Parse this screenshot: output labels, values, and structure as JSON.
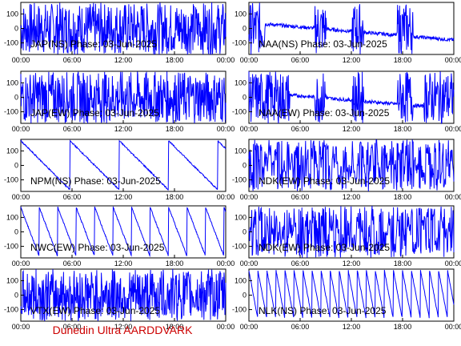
{
  "footer": "Dunedin Ultra AARDDVARK",
  "colors": {
    "trace": "#0000ff",
    "axes": "#000000",
    "footer": "#cc0000"
  },
  "chart_data": [
    {
      "type": "line",
      "title": "JAP(NS) Phase: 03-Jun-2025",
      "x_ticks": [
        "00:00",
        "06:00",
        "12:00",
        "18:00",
        "00:00"
      ],
      "y_ticks": [
        "100",
        "0",
        "-100"
      ],
      "ylim": [
        -180,
        180
      ],
      "grid": false,
      "pattern": "dense"
    },
    {
      "type": "line",
      "title": "NAA(NS) Phase: 03-Jun-2025",
      "x_ticks": [
        "00:00",
        "06:00",
        "12:00",
        "18:00",
        "00:00"
      ],
      "y_ticks": [
        "100",
        "0",
        "-100"
      ],
      "ylim": [
        -180,
        180
      ],
      "grid": false,
      "pattern": "gappy"
    },
    {
      "type": "line",
      "title": "JAP(EW) Phase: 03-Jun-2025",
      "x_ticks": [
        "00:00",
        "06:00",
        "12:00",
        "18:00",
        "00:00"
      ],
      "y_ticks": [
        "100",
        "0",
        "-100"
      ],
      "ylim": [
        -180,
        180
      ],
      "grid": false,
      "pattern": "dense"
    },
    {
      "type": "line",
      "title": "NAA(EW) Phase: 03-Jun-2025",
      "x_ticks": [
        "00:00",
        "06:00",
        "12:00",
        "18:00",
        "00:00"
      ],
      "y_ticks": [
        "100",
        "0",
        "-100"
      ],
      "ylim": [
        -180,
        180
      ],
      "grid": false,
      "pattern": "gappy2"
    },
    {
      "type": "line",
      "title": "NPM(NS) Phase: 03-Jun-2025",
      "x_ticks": [
        "00:00",
        "06:00",
        "12:00",
        "18:00",
        "00:00"
      ],
      "y_ticks": [
        "100",
        "0",
        "-100"
      ],
      "ylim": [
        -180,
        180
      ],
      "grid": false,
      "pattern": "sawslow"
    },
    {
      "type": "line",
      "title": "NDK(EW) Phase: 03-Jun-2025",
      "x_ticks": [
        "00:00",
        "06:00",
        "12:00",
        "18:00",
        "00:00"
      ],
      "y_ticks": [
        "100",
        "0",
        "-100"
      ],
      "ylim": [
        -180,
        180
      ],
      "grid": false,
      "pattern": "noisy"
    },
    {
      "type": "line",
      "title": "NWC(EW) Phase: 03-Jun-2025",
      "x_ticks": [
        "00:00",
        "06:00",
        "12:00",
        "18:00",
        "00:00"
      ],
      "y_ticks": [
        "100",
        "0",
        "-100"
      ],
      "ylim": [
        -180,
        180
      ],
      "grid": false,
      "pattern": "sawmed"
    },
    {
      "type": "line",
      "title": "NDK(EW) Phase: 03-Jun-2025",
      "x_ticks": [
        "00:00",
        "06:00",
        "12:00",
        "18:00",
        "00:00"
      ],
      "y_ticks": [
        "100",
        "0",
        "-100"
      ],
      "ylim": [
        -180,
        180
      ],
      "grid": false,
      "pattern": "noisy"
    },
    {
      "type": "line",
      "title": "VTX(EW) Phase: 03-Jun-2025",
      "x_ticks": [
        "00:00",
        "06:00",
        "12:00",
        "18:00",
        "00:00"
      ],
      "y_ticks": [
        "100",
        "0",
        "-100"
      ],
      "ylim": [
        -180,
        180
      ],
      "grid": false,
      "pattern": "dense"
    },
    {
      "type": "line",
      "title": "NLK(NS) Phase: 03-Jun-2025",
      "x_ticks": [
        "00:00",
        "06:00",
        "12:00",
        "18:00",
        "00:00"
      ],
      "y_ticks": [
        "100",
        "0",
        "-100"
      ],
      "ylim": [
        -180,
        180
      ],
      "grid": false,
      "pattern": "sawfast"
    }
  ]
}
